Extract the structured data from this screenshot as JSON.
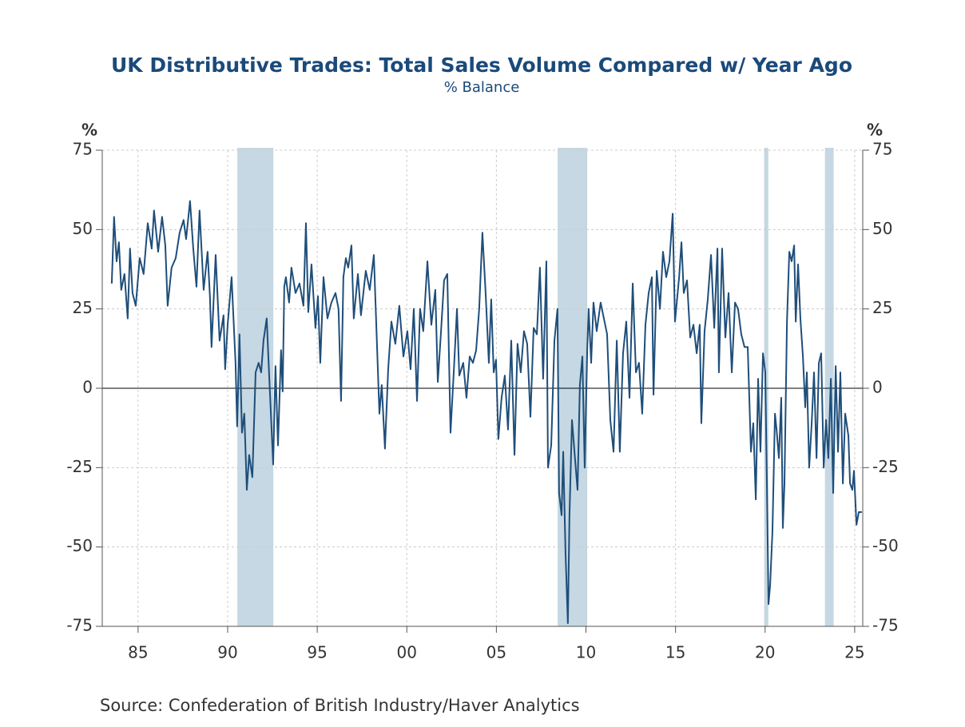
{
  "chart_data": {
    "type": "line",
    "title": "UK Distributive Trades: Total Sales Volume Compared w/ Year Ago",
    "subtitle": "% Balance",
    "ylabel": "%",
    "y2label": "%",
    "source": "Source:  Confederation of British Industry/Haver Analytics",
    "xlim": [
      1983,
      2025.45
    ],
    "xticks": [
      {
        "value": 1985,
        "label": "85"
      },
      {
        "value": 1990,
        "label": "90"
      },
      {
        "value": 1995,
        "label": "95"
      },
      {
        "value": 2000,
        "label": "00"
      },
      {
        "value": 2005,
        "label": "05"
      },
      {
        "value": 2010,
        "label": "10"
      },
      {
        "value": 2015,
        "label": "15"
      },
      {
        "value": 2020,
        "label": "20"
      },
      {
        "value": 2025,
        "label": "25"
      }
    ],
    "ylim": [
      -75,
      75
    ],
    "yticks": [
      -75,
      -50,
      -25,
      0,
      25,
      50,
      75
    ],
    "grid": true,
    "recessions": [
      [
        1990.54,
        1992.55
      ],
      [
        2008.42,
        2010.07
      ],
      [
        2019.95,
        2020.18
      ],
      [
        2023.34,
        2023.83
      ]
    ],
    "series": [
      {
        "name": "Total Sales Volume",
        "color": "#1f4e7a",
        "x": [
          1983.53,
          1983.66,
          1983.8,
          1983.93,
          1984.06,
          1984.24,
          1984.42,
          1984.55,
          1984.69,
          1984.87,
          1985.09,
          1985.31,
          1985.54,
          1985.76,
          1985.89,
          1986.12,
          1986.34,
          1986.52,
          1986.65,
          1986.87,
          1987.1,
          1987.32,
          1987.54,
          1987.68,
          1987.9,
          1988.08,
          1988.26,
          1988.43,
          1988.66,
          1988.88,
          1989.01,
          1989.1,
          1989.33,
          1989.55,
          1989.77,
          1989.86,
          1990.0,
          1990.22,
          1990.44,
          1990.53,
          1990.66,
          1990.8,
          1990.93,
          1991.07,
          1991.2,
          1991.38,
          1991.56,
          1991.73,
          1991.87,
          1992.0,
          1992.18,
          1992.31,
          1992.54,
          1992.67,
          1992.81,
          1992.98,
          1993.07,
          1993.16,
          1993.25,
          1993.43,
          1993.56,
          1993.79,
          1994.01,
          1994.23,
          1994.37,
          1994.5,
          1994.68,
          1994.9,
          1995.04,
          1995.17,
          1995.35,
          1995.57,
          1995.79,
          1996.02,
          1996.19,
          1996.33,
          1996.46,
          1996.6,
          1996.73,
          1996.91,
          1997.04,
          1997.27,
          1997.44,
          1997.71,
          1997.93,
          1998.16,
          1998.34,
          1998.47,
          1998.6,
          1998.78,
          1998.96,
          1999.14,
          1999.36,
          1999.58,
          1999.81,
          2000.03,
          2000.21,
          2000.39,
          2000.57,
          2000.74,
          2000.92,
          2001.15,
          2001.37,
          2001.59,
          2001.73,
          2001.9,
          2002.08,
          2002.26,
          2002.44,
          2002.62,
          2002.8,
          2002.93,
          2003.15,
          2003.33,
          2003.51,
          2003.69,
          2003.87,
          2004.04,
          2004.22,
          2004.4,
          2004.58,
          2004.71,
          2004.85,
          2004.98,
          2005.11,
          2005.29,
          2005.47,
          2005.65,
          2005.83,
          2006.01,
          2006.18,
          2006.36,
          2006.54,
          2006.72,
          2006.9,
          2007.08,
          2007.26,
          2007.43,
          2007.61,
          2007.79,
          2007.88,
          2008.06,
          2008.24,
          2008.41,
          2008.5,
          2008.64,
          2008.73,
          2008.86,
          2008.99,
          2009.08,
          2009.22,
          2009.4,
          2009.53,
          2009.66,
          2009.8,
          2009.93,
          2010.07,
          2010.15,
          2010.29,
          2010.42,
          2010.6,
          2010.82,
          2011.0,
          2011.18,
          2011.36,
          2011.54,
          2011.72,
          2011.89,
          2012.07,
          2012.25,
          2012.43,
          2012.61,
          2012.79,
          2012.96,
          2013.14,
          2013.32,
          2013.5,
          2013.68,
          2013.77,
          2013.95,
          2014.13,
          2014.3,
          2014.48,
          2014.66,
          2014.84,
          2014.97,
          2015.2,
          2015.33,
          2015.46,
          2015.64,
          2015.82,
          2016.0,
          2016.18,
          2016.35,
          2016.44,
          2016.62,
          2016.8,
          2016.98,
          2017.16,
          2017.34,
          2017.42,
          2017.6,
          2017.78,
          2017.96,
          2018.14,
          2018.32,
          2018.49,
          2018.67,
          2018.85,
          2019.03,
          2019.21,
          2019.34,
          2019.48,
          2019.61,
          2019.74,
          2019.88,
          2020.01,
          2020.1,
          2020.19,
          2020.28,
          2020.41,
          2020.55,
          2020.64,
          2020.77,
          2020.9,
          2020.99,
          2021.08,
          2021.22,
          2021.35,
          2021.48,
          2021.62,
          2021.71,
          2021.84,
          2021.97,
          2022.11,
          2022.24,
          2022.33,
          2022.46,
          2022.6,
          2022.73,
          2022.87,
          2023.0,
          2023.13,
          2023.27,
          2023.4,
          2023.53,
          2023.67,
          2023.8,
          2023.94,
          2024.07,
          2024.2,
          2024.34,
          2024.47,
          2024.65,
          2024.74,
          2024.87,
          2024.96,
          2025.1,
          2025.23,
          2025.4
        ],
        "values": [
          33,
          54,
          40,
          46,
          31,
          36,
          22,
          44,
          30,
          26,
          41,
          36,
          52,
          44,
          56,
          43,
          54,
          45,
          26,
          38,
          41,
          49,
          53,
          47,
          59,
          44,
          32,
          56,
          31,
          43,
          29,
          13,
          42,
          15,
          23,
          6,
          20,
          35,
          8,
          -12,
          17,
          -14,
          -8,
          -32,
          -21,
          -28,
          5,
          8,
          5,
          15,
          22,
          5,
          -24,
          7,
          -18,
          12,
          -1,
          32,
          35,
          27,
          38,
          30,
          33,
          26,
          52,
          24,
          39,
          19,
          29,
          8,
          35,
          22,
          27,
          30,
          25,
          -4,
          35,
          41,
          38,
          45,
          22,
          36,
          23,
          37,
          31,
          42,
          13,
          -8,
          1,
          -19,
          6,
          21,
          14,
          26,
          10,
          18,
          6,
          25,
          -4,
          25,
          18,
          40,
          20,
          31,
          2,
          17,
          34,
          36,
          -14,
          5,
          25,
          4,
          8,
          -3,
          10,
          8,
          12,
          25,
          49,
          30,
          8,
          28,
          5,
          9,
          -16,
          -3,
          4,
          -13,
          15,
          -21,
          14,
          5,
          18,
          14,
          -9,
          19,
          17,
          38,
          3,
          40,
          -25,
          -18,
          15,
          25,
          -33,
          -40,
          -20,
          -52,
          -74,
          -40,
          -10,
          -23,
          -32,
          1,
          10,
          -25,
          12,
          25,
          8,
          27,
          18,
          27,
          22,
          17,
          -10,
          -20,
          15,
          -20,
          11,
          21,
          -3,
          33,
          5,
          8,
          -8,
          20,
          30,
          35,
          -2,
          37,
          25,
          43,
          35,
          40,
          55,
          21,
          35,
          46,
          30,
          34,
          16,
          20,
          11,
          20,
          -11,
          18,
          28,
          42,
          19,
          44,
          5,
          44,
          16,
          30,
          5,
          27,
          25,
          17,
          13,
          13,
          -20,
          -11,
          -35,
          3,
          -20,
          11,
          5,
          -30,
          -68,
          -62,
          -45,
          -8,
          -13,
          -22,
          -3,
          -44,
          -30,
          21,
          43,
          40,
          45,
          21,
          39,
          22,
          10,
          -6,
          5,
          -25,
          -11,
          5,
          -22,
          8,
          11,
          -25,
          -10,
          -22,
          3,
          -33,
          7,
          -20,
          5,
          -30,
          -8,
          -15,
          -30,
          -32,
          -26,
          -43,
          -39,
          -39
        ]
      }
    ]
  }
}
